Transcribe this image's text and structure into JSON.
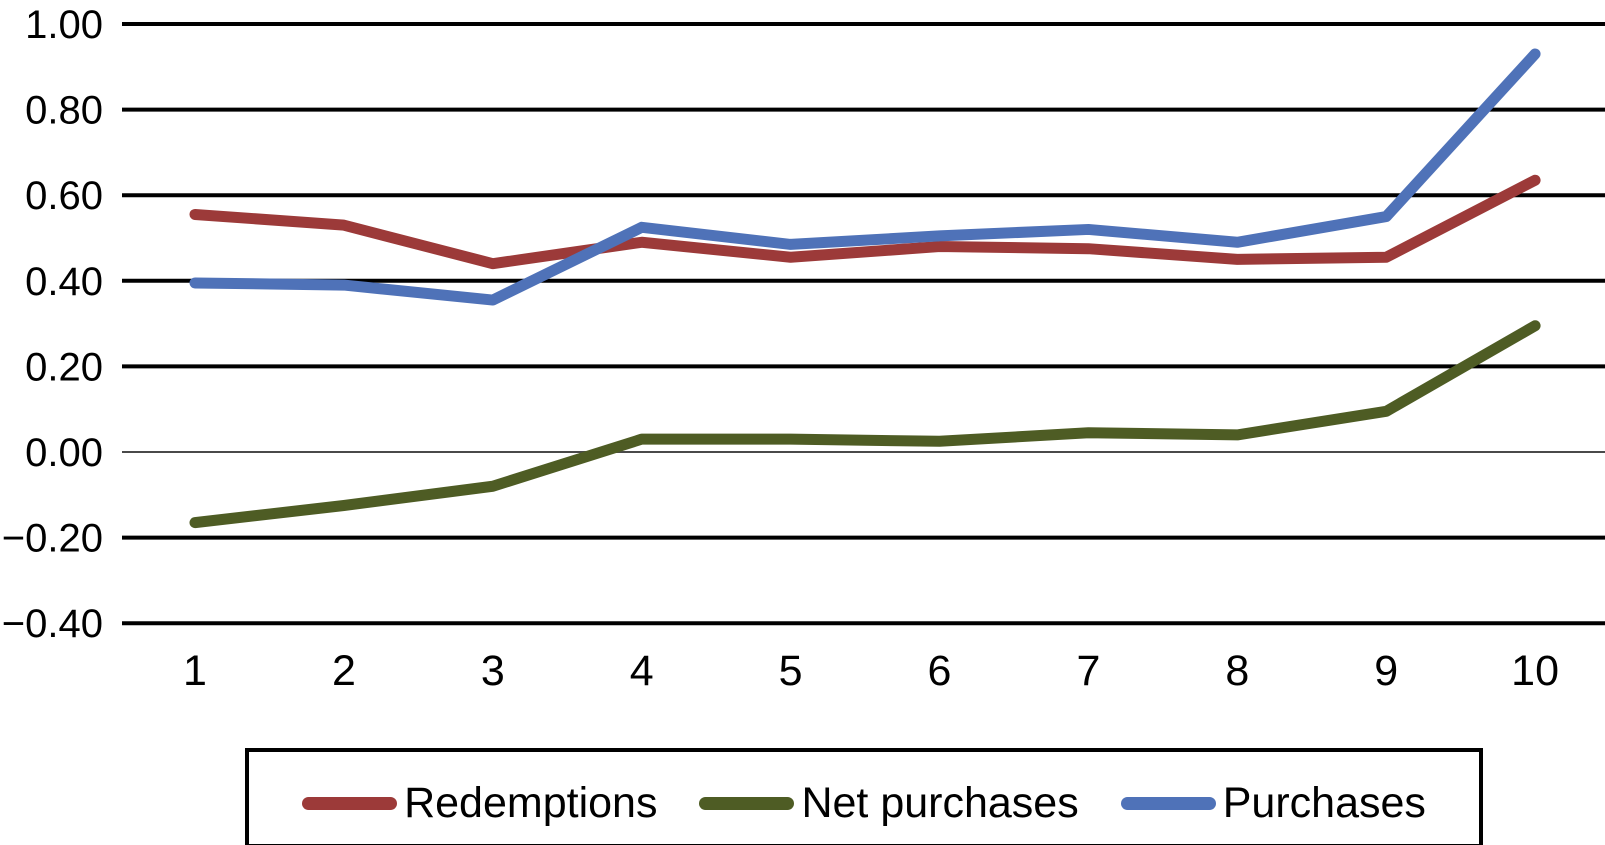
{
  "chart_data": {
    "type": "line",
    "title": "",
    "xlabel": "",
    "ylabel": "",
    "categories": [
      "1",
      "2",
      "3",
      "4",
      "5",
      "6",
      "7",
      "8",
      "9",
      "10"
    ],
    "y_axis": {
      "range": [
        -0.4,
        1.0
      ],
      "tick_step": 0.2,
      "ticks": [
        {
          "value": 1.0,
          "label": "1.00"
        },
        {
          "value": 0.8,
          "label": "0.80"
        },
        {
          "value": 0.6,
          "label": "0.60"
        },
        {
          "value": 0.4,
          "label": "0.40"
        },
        {
          "value": 0.2,
          "label": "0.20"
        },
        {
          "value": 0.0,
          "label": "0.00"
        },
        {
          "value": -0.2,
          "label": "−0.20"
        },
        {
          "value": -0.4,
          "label": "−0.40"
        }
      ]
    },
    "grid": "horizontal",
    "legend_position": "bottom",
    "series": [
      {
        "name": "Redemptions",
        "color": "#9C3A39",
        "values": [
          0.555,
          0.53,
          0.44,
          0.49,
          0.455,
          0.48,
          0.475,
          0.45,
          0.455,
          0.635
        ]
      },
      {
        "name": "Net purchases",
        "color": "#4E5C24",
        "values": [
          -0.165,
          -0.125,
          -0.08,
          0.03,
          0.03,
          0.025,
          0.045,
          0.04,
          0.095,
          0.295
        ]
      },
      {
        "name": "Purchases",
        "color": "#4F72B8",
        "values": [
          0.395,
          0.39,
          0.355,
          0.525,
          0.485,
          0.505,
          0.52,
          0.49,
          0.55,
          0.93
        ]
      }
    ],
    "colors": {
      "gridline": "#000000",
      "zero_line": "#4A4A4A",
      "text": "#000000",
      "background": "#FFFFFF",
      "legend_border": "#000000"
    }
  }
}
